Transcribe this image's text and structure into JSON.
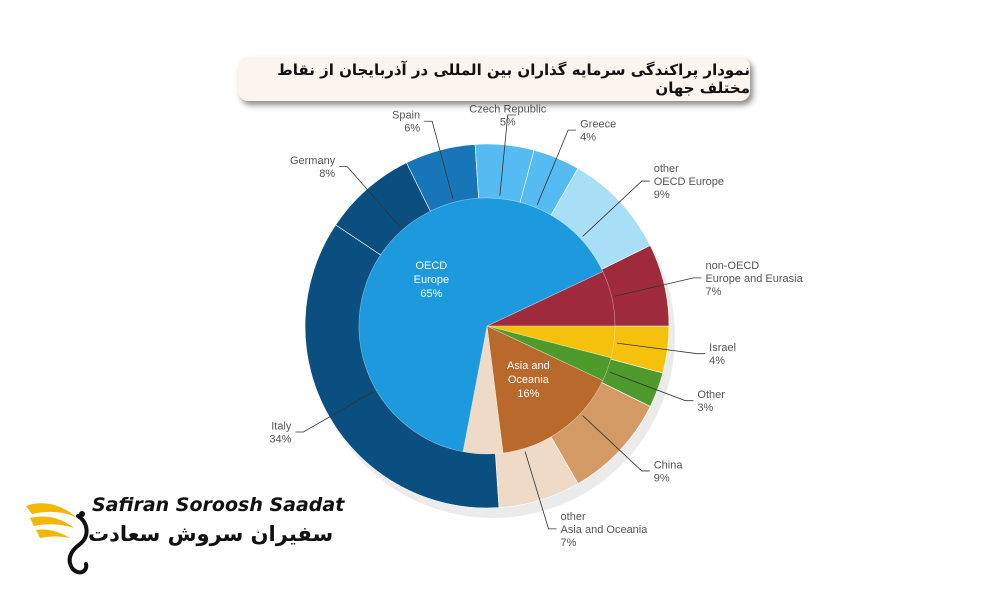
{
  "title": "نمودار پراکندگی سرمایه گذاران بین المللی در آذربایجان از نقاط مختلف جهان",
  "brand": {
    "name_en": "Safiran Soroosh Saadat",
    "name_fa": "سفیران سروش سعادت",
    "logo_icon": "winged-emblem-icon"
  },
  "colors": {
    "oecd_dark": "#0b4f80",
    "oecd_mid": "#1876b8",
    "oecd_inner": "#1d99dd",
    "oecd_light": "#56bbf0",
    "oecd_pale": "#a9def7",
    "non_oecd": "#9e2a3c",
    "israel": "#f4c20d",
    "other": "#4f9a2c",
    "asia_inner": "#b8692b",
    "china": "#d49a66",
    "asia_other": "#efd9c7"
  },
  "chart_data": {
    "type": "pie",
    "title": "",
    "inner": [
      {
        "label": "OECD\nEurope\n65%",
        "value": 65,
        "color_key": "oecd_inner"
      },
      {
        "label": "",
        "value": 7,
        "color_key": "non_oecd"
      },
      {
        "label": "",
        "value": 4,
        "color_key": "israel"
      },
      {
        "label": "",
        "value": 3,
        "color_key": "other"
      },
      {
        "label": "Asia and\nOceania\n16%",
        "value": 16,
        "color_key": "asia_inner"
      },
      {
        "label": "",
        "value": 5,
        "color_key": "asia_other"
      }
    ],
    "outer": [
      {
        "name": "Italy",
        "pct": "34%",
        "value": 34,
        "color_key": "oecd_dark"
      },
      {
        "name": "Germany",
        "pct": "8%",
        "value": 8,
        "color_key": "oecd_dark"
      },
      {
        "name": "Spain",
        "pct": "6%",
        "value": 6,
        "color_key": "oecd_mid"
      },
      {
        "name": "Czech Republic",
        "pct": "5%",
        "value": 5,
        "color_key": "oecd_light"
      },
      {
        "name": "Greece",
        "pct": "4%",
        "value": 4,
        "color_key": "oecd_light"
      },
      {
        "name": "other\nOECD Europe",
        "pct": "9%",
        "value": 9,
        "color_key": "oecd_pale"
      },
      {
        "name": "non-OECD\nEurope and Eurasia",
        "pct": "7%",
        "value": 7,
        "color_key": "non_oecd"
      },
      {
        "name": "Israel",
        "pct": "4%",
        "value": 4,
        "color_key": "israel"
      },
      {
        "name": "Other",
        "pct": "3%",
        "value": 3,
        "color_key": "other"
      },
      {
        "name": "China",
        "pct": "9%",
        "value": 9,
        "color_key": "china"
      },
      {
        "name": "other\nAsia and Oceania",
        "pct": "7%",
        "value": 7,
        "color_key": "asia_other"
      }
    ]
  }
}
